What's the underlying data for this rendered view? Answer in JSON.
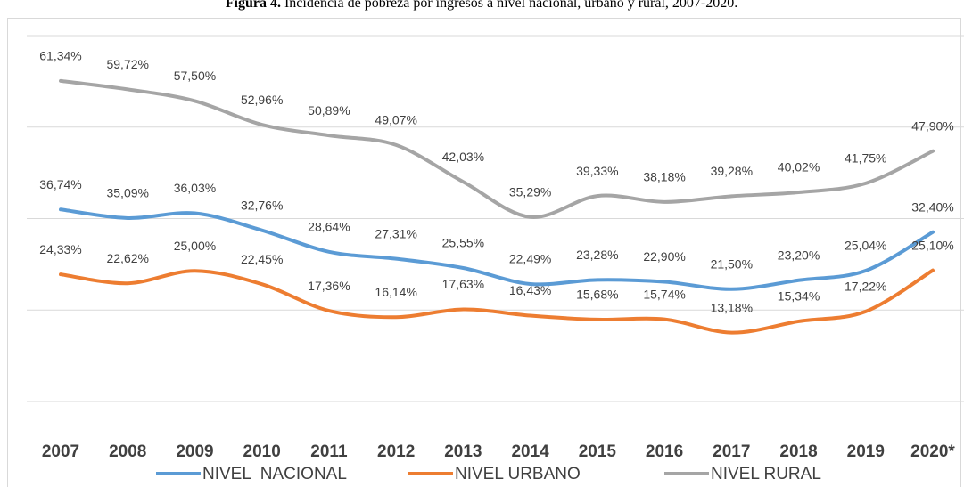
{
  "chart_data": {
    "type": "line",
    "title_label": "Figura 4.",
    "title": "Incidencia de pobreza por ingresos a nivel nacional, urbano y rural, 2007-2020.",
    "categories": [
      "2007",
      "2008",
      "2009",
      "2010",
      "2011",
      "2012",
      "2013",
      "2014",
      "2015",
      "2016",
      "2017",
      "2018",
      "2019",
      "2020*"
    ],
    "ylim": [
      0,
      70
    ],
    "yticks": [
      0,
      17.5,
      35,
      52.5,
      70
    ],
    "grid": true,
    "legend": "bottom",
    "series": [
      {
        "name": "NIVEL  NACIONAL",
        "color": "#5b9bd5",
        "values": [
          36.74,
          35.09,
          36.03,
          32.76,
          28.64,
          27.31,
          25.55,
          22.49,
          23.28,
          22.9,
          21.5,
          23.2,
          25.04,
          32.4
        ],
        "value_labels": [
          "36,74%",
          "35,09%",
          "36,03%",
          "32,76%",
          "28,64%",
          "27,31%",
          "25,55%",
          "22,49%",
          "23,28%",
          "22,90%",
          "21,50%",
          "23,20%",
          "25,04%",
          "32,40%"
        ]
      },
      {
        "name": "NIVEL URBANO",
        "color": "#ed7d31",
        "values": [
          24.33,
          22.62,
          25.0,
          22.45,
          17.36,
          16.14,
          17.63,
          16.43,
          15.68,
          15.74,
          13.18,
          15.34,
          17.22,
          25.1
        ],
        "value_labels": [
          "24,33%",
          "22,62%",
          "25,00%",
          "22,45%",
          "17,36%",
          "16,14%",
          "17,63%",
          "16,43%",
          "15,68%",
          "15,74%",
          "13,18%",
          "15,34%",
          "17,22%",
          "25,10%"
        ]
      },
      {
        "name": "NIVEL RURAL",
        "color": "#a5a5a5",
        "values": [
          61.34,
          59.72,
          57.5,
          52.96,
          50.89,
          49.07,
          42.03,
          35.29,
          39.33,
          38.18,
          39.28,
          40.02,
          41.75,
          47.9
        ],
        "value_labels": [
          "61,34%",
          "59,72%",
          "57,50%",
          "52,96%",
          "50,89%",
          "49,07%",
          "42,03%",
          "35,29%",
          "39,33%",
          "38,18%",
          "39,28%",
          "40,02%",
          "41,75%",
          "47,90%"
        ]
      }
    ]
  }
}
